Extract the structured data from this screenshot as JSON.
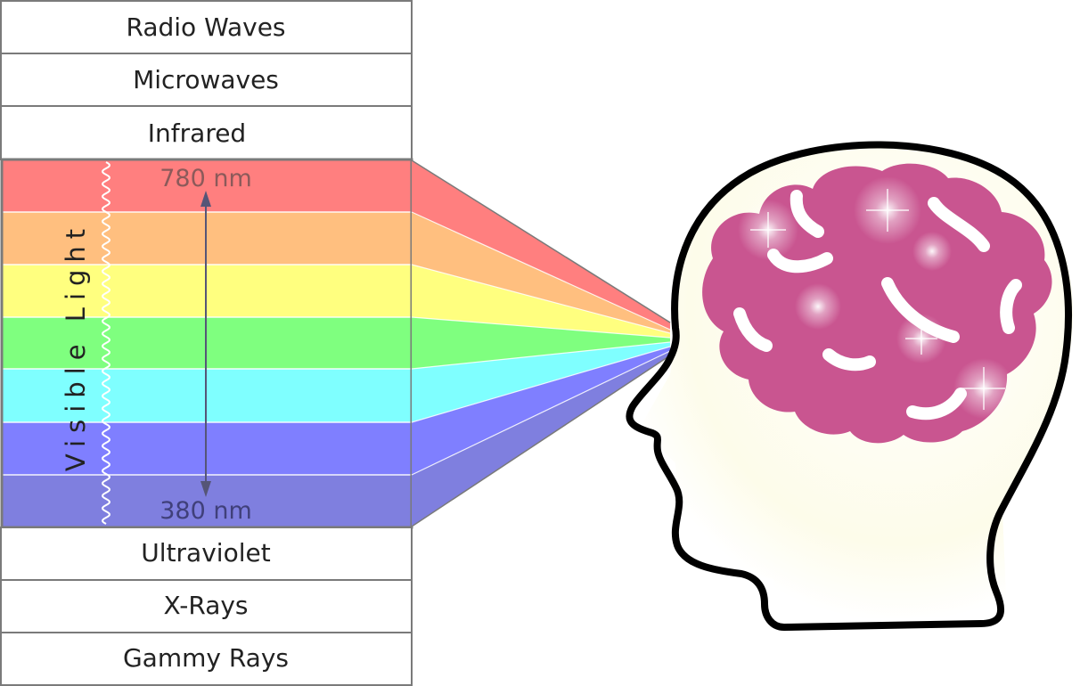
{
  "spectrum": {
    "upper_bands": [
      {
        "label": "Radio Waves"
      },
      {
        "label": "Microwaves"
      },
      {
        "label": "Infrared"
      }
    ],
    "lower_bands": [
      {
        "label": "Ultraviolet"
      },
      {
        "label": "X-Rays"
      },
      {
        "label": "Gammy Rays"
      }
    ],
    "visible": {
      "label": "Visible Light",
      "top_wavelength": "780 nm",
      "bottom_wavelength": "380 nm",
      "colors": [
        "#ff7f7f",
        "#ffbf7f",
        "#ffff7f",
        "#7fff7f",
        "#7fffff",
        "#7f7fff",
        "#7f7fdf"
      ]
    }
  },
  "colors": {
    "brain": "#c95590",
    "outline": "#000000",
    "frame": "#7a7a7a",
    "top_label": "#8c5a5a",
    "bottom_label": "#40407a"
  }
}
